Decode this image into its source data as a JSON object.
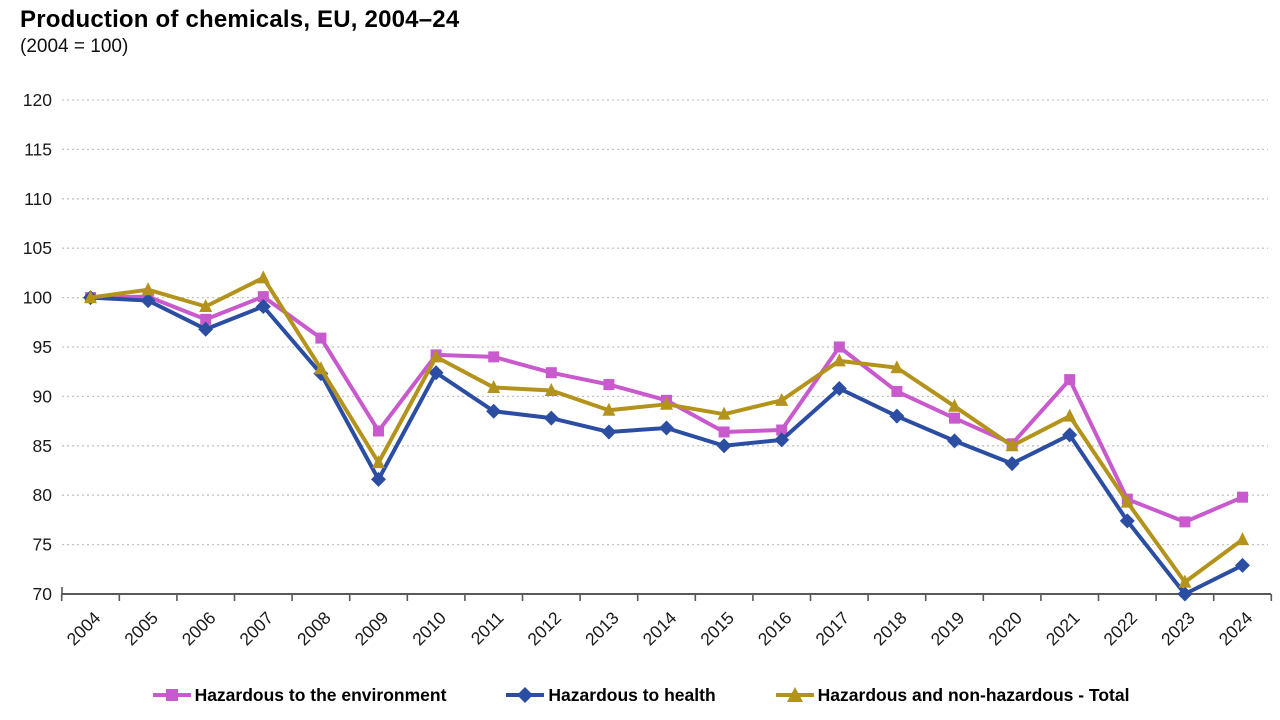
{
  "title": "Production of chemicals, EU, 2004–24",
  "subtitle": "(2004 = 100)",
  "chart_data": {
    "type": "line",
    "x": [
      2004,
      2005,
      2006,
      2007,
      2008,
      2009,
      2010,
      2011,
      2012,
      2013,
      2014,
      2015,
      2016,
      2017,
      2018,
      2019,
      2020,
      2021,
      2022,
      2023,
      2024
    ],
    "series": [
      {
        "name": "Hazardous to the environment",
        "color": "#c95acd",
        "marker": "square",
        "values": [
          100.0,
          100.1,
          97.8,
          100.1,
          95.9,
          86.5,
          94.2,
          94.0,
          92.4,
          91.2,
          89.6,
          86.4,
          86.6,
          95.0,
          90.5,
          87.8,
          85.2,
          91.7,
          79.6,
          77.3,
          79.8
        ]
      },
      {
        "name": "Hazardous to health",
        "color": "#2b4ea3",
        "marker": "diamond",
        "values": [
          100.0,
          99.7,
          96.8,
          99.1,
          92.3,
          81.6,
          92.4,
          88.5,
          87.8,
          86.4,
          86.8,
          85.0,
          85.6,
          90.8,
          88.0,
          85.5,
          83.2,
          86.1,
          77.4,
          70.0,
          72.9
        ]
      },
      {
        "name": "Hazardous and non-hazardous - Total",
        "color": "#b3931c",
        "marker": "triangle",
        "values": [
          100.0,
          100.8,
          99.1,
          102.0,
          92.8,
          83.3,
          94.0,
          90.9,
          90.6,
          88.6,
          89.2,
          88.2,
          89.6,
          93.6,
          92.9,
          89.0,
          85.0,
          88.0,
          79.3,
          71.2,
          75.5
        ]
      }
    ],
    "ylim": [
      70,
      120
    ],
    "ytick_step": 5,
    "yticks": [
      70,
      75,
      80,
      85,
      90,
      95,
      100,
      105,
      110,
      115,
      120
    ],
    "grid": "horizontal-dotted",
    "gridline_color": "#c3c3c3",
    "axis_color": "#595959",
    "legend_position": "bottom"
  }
}
